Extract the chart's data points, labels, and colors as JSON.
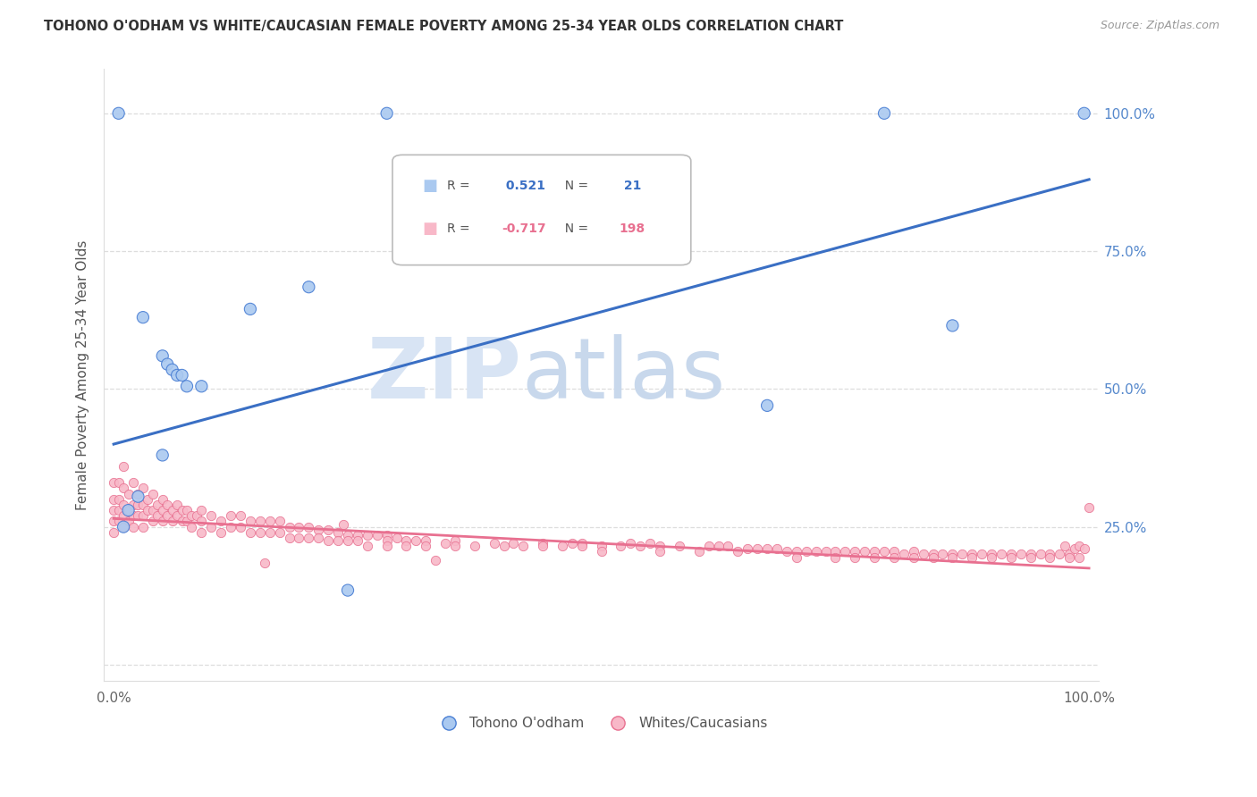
{
  "title": "TOHONO O'ODHAM VS WHITE/CAUCASIAN FEMALE POVERTY AMONG 25-34 YEAR OLDS CORRELATION CHART",
  "source": "Source: ZipAtlas.com",
  "ylabel": "Female Poverty Among 25-34 Year Olds",
  "watermark_zip": "ZIP",
  "watermark_atlas": "atlas",
  "blue_R": 0.521,
  "blue_N": 21,
  "pink_R": -0.717,
  "pink_N": 198,
  "blue_line_x": [
    0.0,
    1.0
  ],
  "blue_line_y": [
    0.4,
    0.88
  ],
  "pink_line_x": [
    0.0,
    1.0
  ],
  "pink_line_y": [
    0.265,
    0.175
  ],
  "blue_color": "#aac9f0",
  "pink_color": "#f8b8c8",
  "blue_edge_color": "#4a7fd4",
  "pink_edge_color": "#e87090",
  "blue_line_color": "#3a6fc4",
  "pink_line_color": "#e87090",
  "legend_blue_label": "Tohono O'odham",
  "legend_pink_label": "Whites/Caucasians",
  "right_yticks": [
    0.0,
    0.25,
    0.5,
    0.75,
    1.0
  ],
  "right_ytick_labels": [
    "",
    "25.0%",
    "50.0%",
    "75.0%",
    "100.0%"
  ],
  "background_color": "#ffffff",
  "grid_color": "#dddddd",
  "ylim_min": -0.03,
  "ylim_max": 1.08,
  "xlim_min": -0.01,
  "xlim_max": 1.01,
  "blue_points": [
    [
      0.005,
      1.0
    ],
    [
      0.28,
      1.0
    ],
    [
      0.79,
      1.0
    ],
    [
      0.995,
      1.0
    ],
    [
      0.03,
      0.63
    ],
    [
      0.05,
      0.56
    ],
    [
      0.055,
      0.545
    ],
    [
      0.06,
      0.535
    ],
    [
      0.065,
      0.525
    ],
    [
      0.07,
      0.525
    ],
    [
      0.075,
      0.505
    ],
    [
      0.09,
      0.505
    ],
    [
      0.14,
      0.645
    ],
    [
      0.2,
      0.685
    ],
    [
      0.05,
      0.38
    ],
    [
      0.025,
      0.305
    ],
    [
      0.015,
      0.28
    ],
    [
      0.24,
      0.135
    ],
    [
      0.67,
      0.47
    ],
    [
      0.86,
      0.615
    ],
    [
      0.01,
      0.25
    ]
  ],
  "blue_sizes_special": [
    [
      0,
      400
    ],
    [
      20,
      400
    ]
  ],
  "blue_size_default": 90,
  "pink_size": 55,
  "pink_points": [
    [
      0.0,
      0.33
    ],
    [
      0.0,
      0.3
    ],
    [
      0.0,
      0.28
    ],
    [
      0.0,
      0.26
    ],
    [
      0.0,
      0.24
    ],
    [
      0.005,
      0.33
    ],
    [
      0.005,
      0.3
    ],
    [
      0.005,
      0.28
    ],
    [
      0.005,
      0.26
    ],
    [
      0.01,
      0.36
    ],
    [
      0.01,
      0.32
    ],
    [
      0.01,
      0.29
    ],
    [
      0.01,
      0.27
    ],
    [
      0.01,
      0.25
    ],
    [
      0.015,
      0.31
    ],
    [
      0.015,
      0.28
    ],
    [
      0.015,
      0.26
    ],
    [
      0.02,
      0.33
    ],
    [
      0.02,
      0.29
    ],
    [
      0.02,
      0.27
    ],
    [
      0.02,
      0.25
    ],
    [
      0.025,
      0.31
    ],
    [
      0.025,
      0.29
    ],
    [
      0.025,
      0.27
    ],
    [
      0.03,
      0.32
    ],
    [
      0.03,
      0.29
    ],
    [
      0.03,
      0.27
    ],
    [
      0.03,
      0.25
    ],
    [
      0.035,
      0.3
    ],
    [
      0.035,
      0.28
    ],
    [
      0.04,
      0.31
    ],
    [
      0.04,
      0.28
    ],
    [
      0.04,
      0.26
    ],
    [
      0.045,
      0.29
    ],
    [
      0.045,
      0.27
    ],
    [
      0.05,
      0.3
    ],
    [
      0.05,
      0.28
    ],
    [
      0.05,
      0.26
    ],
    [
      0.055,
      0.29
    ],
    [
      0.055,
      0.27
    ],
    [
      0.06,
      0.28
    ],
    [
      0.06,
      0.26
    ],
    [
      0.065,
      0.29
    ],
    [
      0.065,
      0.27
    ],
    [
      0.07,
      0.28
    ],
    [
      0.07,
      0.26
    ],
    [
      0.075,
      0.28
    ],
    [
      0.075,
      0.26
    ],
    [
      0.08,
      0.27
    ],
    [
      0.08,
      0.25
    ],
    [
      0.085,
      0.27
    ],
    [
      0.09,
      0.28
    ],
    [
      0.09,
      0.26
    ],
    [
      0.09,
      0.24
    ],
    [
      0.1,
      0.27
    ],
    [
      0.1,
      0.25
    ],
    [
      0.11,
      0.26
    ],
    [
      0.11,
      0.24
    ],
    [
      0.12,
      0.27
    ],
    [
      0.12,
      0.25
    ],
    [
      0.13,
      0.27
    ],
    [
      0.13,
      0.25
    ],
    [
      0.14,
      0.26
    ],
    [
      0.14,
      0.24
    ],
    [
      0.15,
      0.26
    ],
    [
      0.15,
      0.24
    ],
    [
      0.155,
      0.185
    ],
    [
      0.16,
      0.26
    ],
    [
      0.16,
      0.24
    ],
    [
      0.17,
      0.26
    ],
    [
      0.17,
      0.24
    ],
    [
      0.18,
      0.25
    ],
    [
      0.18,
      0.23
    ],
    [
      0.19,
      0.25
    ],
    [
      0.19,
      0.23
    ],
    [
      0.2,
      0.25
    ],
    [
      0.2,
      0.23
    ],
    [
      0.21,
      0.245
    ],
    [
      0.21,
      0.23
    ],
    [
      0.22,
      0.245
    ],
    [
      0.22,
      0.225
    ],
    [
      0.23,
      0.24
    ],
    [
      0.23,
      0.225
    ],
    [
      0.235,
      0.255
    ],
    [
      0.24,
      0.235
    ],
    [
      0.24,
      0.225
    ],
    [
      0.25,
      0.235
    ],
    [
      0.25,
      0.225
    ],
    [
      0.26,
      0.235
    ],
    [
      0.26,
      0.215
    ],
    [
      0.27,
      0.235
    ],
    [
      0.28,
      0.235
    ],
    [
      0.28,
      0.225
    ],
    [
      0.28,
      0.215
    ],
    [
      0.29,
      0.23
    ],
    [
      0.3,
      0.225
    ],
    [
      0.3,
      0.215
    ],
    [
      0.31,
      0.225
    ],
    [
      0.32,
      0.225
    ],
    [
      0.32,
      0.215
    ],
    [
      0.33,
      0.19
    ],
    [
      0.34,
      0.22
    ],
    [
      0.35,
      0.225
    ],
    [
      0.35,
      0.215
    ],
    [
      0.37,
      0.215
    ],
    [
      0.39,
      0.22
    ],
    [
      0.4,
      0.215
    ],
    [
      0.41,
      0.22
    ],
    [
      0.42,
      0.215
    ],
    [
      0.44,
      0.22
    ],
    [
      0.44,
      0.215
    ],
    [
      0.46,
      0.215
    ],
    [
      0.47,
      0.22
    ],
    [
      0.48,
      0.22
    ],
    [
      0.48,
      0.215
    ],
    [
      0.5,
      0.215
    ],
    [
      0.5,
      0.205
    ],
    [
      0.52,
      0.215
    ],
    [
      0.53,
      0.22
    ],
    [
      0.54,
      0.215
    ],
    [
      0.55,
      0.22
    ],
    [
      0.56,
      0.215
    ],
    [
      0.56,
      0.205
    ],
    [
      0.58,
      0.215
    ],
    [
      0.6,
      0.205
    ],
    [
      0.61,
      0.215
    ],
    [
      0.62,
      0.215
    ],
    [
      0.63,
      0.215
    ],
    [
      0.64,
      0.205
    ],
    [
      0.65,
      0.21
    ],
    [
      0.66,
      0.21
    ],
    [
      0.67,
      0.21
    ],
    [
      0.68,
      0.21
    ],
    [
      0.69,
      0.205
    ],
    [
      0.7,
      0.205
    ],
    [
      0.7,
      0.195
    ],
    [
      0.71,
      0.205
    ],
    [
      0.72,
      0.205
    ],
    [
      0.73,
      0.205
    ],
    [
      0.74,
      0.205
    ],
    [
      0.74,
      0.195
    ],
    [
      0.75,
      0.205
    ],
    [
      0.76,
      0.205
    ],
    [
      0.76,
      0.195
    ],
    [
      0.77,
      0.205
    ],
    [
      0.78,
      0.205
    ],
    [
      0.78,
      0.195
    ],
    [
      0.79,
      0.205
    ],
    [
      0.8,
      0.205
    ],
    [
      0.8,
      0.195
    ],
    [
      0.81,
      0.2
    ],
    [
      0.82,
      0.205
    ],
    [
      0.82,
      0.195
    ],
    [
      0.83,
      0.2
    ],
    [
      0.84,
      0.2
    ],
    [
      0.84,
      0.195
    ],
    [
      0.85,
      0.2
    ],
    [
      0.86,
      0.2
    ],
    [
      0.86,
      0.195
    ],
    [
      0.87,
      0.2
    ],
    [
      0.88,
      0.2
    ],
    [
      0.88,
      0.195
    ],
    [
      0.89,
      0.2
    ],
    [
      0.9,
      0.2
    ],
    [
      0.9,
      0.195
    ],
    [
      0.91,
      0.2
    ],
    [
      0.92,
      0.2
    ],
    [
      0.92,
      0.195
    ],
    [
      0.93,
      0.2
    ],
    [
      0.94,
      0.2
    ],
    [
      0.94,
      0.195
    ],
    [
      0.95,
      0.2
    ],
    [
      0.96,
      0.2
    ],
    [
      0.96,
      0.195
    ],
    [
      0.97,
      0.2
    ],
    [
      0.975,
      0.215
    ],
    [
      0.98,
      0.2
    ],
    [
      0.98,
      0.195
    ],
    [
      0.985,
      0.21
    ],
    [
      0.99,
      0.215
    ],
    [
      0.99,
      0.195
    ],
    [
      0.995,
      0.21
    ],
    [
      1.0,
      0.285
    ]
  ]
}
